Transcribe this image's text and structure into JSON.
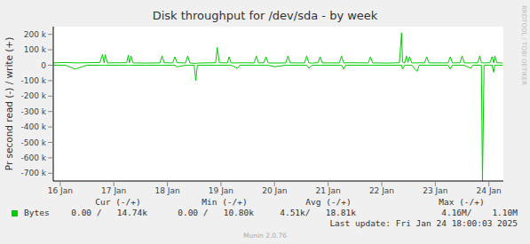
{
  "chart_data": {
    "type": "line",
    "title": "Disk throughput for /dev/sda - by week",
    "y_label": "Pr second read (-) / write (+)",
    "x": [
      15.87,
      16.1,
      16.28,
      16.5,
      16.74,
      16.79,
      16.82,
      16.84,
      16.88,
      17.1,
      17.24,
      17.27,
      17.29,
      17.32,
      17.36,
      17.6,
      17.86,
      17.9,
      17.94,
      18.1,
      18.14,
      18.18,
      18.34,
      18.38,
      18.42,
      18.5,
      18.53,
      18.56,
      18.9,
      18.93,
      18.97,
      19.12,
      19.15,
      19.19,
      19.31,
      19.35,
      19.62,
      19.66,
      19.7,
      19.8,
      19.84,
      19.88,
      20.0,
      20.21,
      20.25,
      20.29,
      20.56,
      20.6,
      20.64,
      20.7,
      20.81,
      20.85,
      20.89,
      21.21,
      21.25,
      21.29,
      21.33,
      21.75,
      21.79,
      21.83,
      22.1,
      22.33,
      22.37,
      22.39,
      22.43,
      22.46,
      22.49,
      22.52,
      22.56,
      22.66,
      22.7,
      22.8,
      22.84,
      22.88,
      23.24,
      23.28,
      23.32,
      23.46,
      23.5,
      23.54,
      23.66,
      23.7,
      23.79,
      23.83,
      23.86,
      23.88,
      23.91,
      24.02,
      24.06,
      24.09,
      24.11,
      24.15,
      24.26
    ],
    "series": [
      {
        "name": "Bytes",
        "color": "#00cc00",
        "values": [
          15000,
          18000,
          15000,
          16000,
          18000,
          70000,
          15000,
          68000,
          15000,
          16000,
          16000,
          65000,
          15000,
          60000,
          15000,
          14000,
          15000,
          60000,
          16000,
          15000,
          55000,
          16000,
          15000,
          60000,
          15000,
          12000,
          10800,
          14000,
          16000,
          115000,
          16000,
          15000,
          55000,
          15000,
          15000,
          16000,
          15000,
          60000,
          15000,
          16000,
          55000,
          15000,
          14000,
          15000,
          60000,
          15000,
          15000,
          60000,
          15000,
          14000,
          16000,
          55000,
          15000,
          15000,
          60000,
          15000,
          16000,
          15000,
          55000,
          15000,
          14000,
          16000,
          210000,
          20000,
          15000,
          60000,
          18000,
          55000,
          15000,
          15000,
          16000,
          15000,
          55000,
          15000,
          15000,
          55000,
          15000,
          16000,
          60000,
          15000,
          15000,
          16000,
          15000,
          60000,
          15000,
          15000,
          15000,
          16000,
          55000,
          15000,
          60000,
          16000,
          14740
        ],
        "read_values": [
          0,
          0,
          -25000,
          0,
          0,
          0,
          0,
          0,
          0,
          0,
          0,
          0,
          0,
          0,
          0,
          0,
          0,
          0,
          0,
          0,
          0,
          -10000,
          0,
          0,
          0,
          0,
          -100000,
          0,
          0,
          0,
          0,
          0,
          0,
          0,
          -20000,
          0,
          0,
          0,
          0,
          0,
          0,
          0,
          -10000,
          0,
          0,
          0,
          0,
          0,
          -20000,
          0,
          0,
          0,
          0,
          0,
          0,
          -25000,
          0,
          0,
          0,
          0,
          0,
          0,
          0,
          -25000,
          0,
          0,
          0,
          0,
          0,
          -40000,
          0,
          0,
          0,
          0,
          0,
          -25000,
          0,
          0,
          0,
          0,
          -20000,
          0,
          0,
          0,
          0,
          -750000,
          0,
          0,
          0,
          -45000,
          0,
          0,
          0
        ]
      }
    ],
    "xlim": [
      15.87,
      24.27
    ],
    "xticks": [
      {
        "value": 16,
        "label": "16 Jan"
      },
      {
        "value": 17,
        "label": "17 Jan"
      },
      {
        "value": 18,
        "label": "18 Jan"
      },
      {
        "value": 19,
        "label": "19 Jan"
      },
      {
        "value": 20,
        "label": "20 Jan"
      },
      {
        "value": 21,
        "label": "21 Jan"
      },
      {
        "value": 22,
        "label": "22 Jan"
      },
      {
        "value": 23,
        "label": "23 Jan"
      },
      {
        "value": 24,
        "label": "24 Jan"
      }
    ],
    "ylim": [
      -750000,
      250000
    ],
    "yticks": [
      {
        "value": -700000,
        "label": "-700 k"
      },
      {
        "value": -600000,
        "label": "-600 k"
      },
      {
        "value": -500000,
        "label": "-500 k"
      },
      {
        "value": -400000,
        "label": "-400 k"
      },
      {
        "value": -300000,
        "label": "-300 k"
      },
      {
        "value": -200000,
        "label": "-200 k"
      },
      {
        "value": -100000,
        "label": "-100 k"
      },
      0,
      {
        "value": 100000,
        "label": "100 k"
      },
      {
        "value": 200000,
        "label": "200 k"
      }
    ],
    "grid": true,
    "legend_table": {
      "headers": [
        "Cur (-/+)",
        "Min (-/+)",
        "Avg (-/+)",
        "Max (-/+)"
      ],
      "rows": [
        {
          "name": "Bytes",
          "cells": [
            "0.00 /   14.74k",
            "0.00 /   10.80k",
            "4.51k/   18.81k",
            "4.16M/    1.10M"
          ]
        }
      ]
    },
    "last_update": "Last update: Fri Jan 24 18:00:03 2025",
    "version": "Munin 2.0.76",
    "side_text": "RRDTOOL / TOBI OETIKER"
  }
}
